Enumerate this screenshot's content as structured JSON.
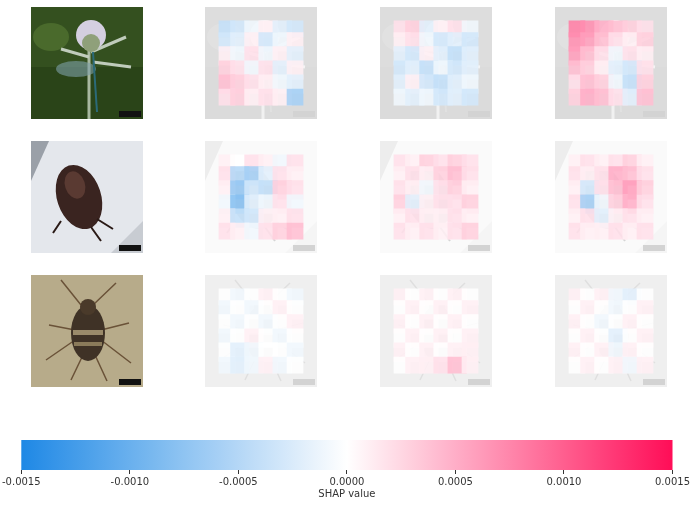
{
  "chart_data": {
    "type": "heatmap",
    "tick_labels": false,
    "cells": [
      [
        [
          [
            -0.0004,
            -0.0003,
            -0.0001,
            0.0001,
            -0.0002,
            -0.0003
          ],
          [
            -0.0003,
            -0.0002,
            0.0001,
            -0.0003,
            -0.0001,
            0.0001
          ],
          [
            0.0001,
            -0.0001,
            0.0002,
            -0.0001,
            0.0001,
            -0.0002
          ],
          [
            0.0003,
            0.0002,
            -0.0001,
            0.0002,
            -0.0002,
            0.0001
          ],
          [
            0.0004,
            0.0003,
            0.0002,
            0.0001,
            -0.0001,
            -0.0002
          ],
          [
            0.0002,
            0.0003,
            0.0001,
            0.0002,
            0.0001,
            -0.0006
          ]
        ],
        [
          [
            0.0002,
            0.0003,
            -0.0002,
            0.0001,
            0.0002,
            -0.0001
          ],
          [
            0.0001,
            0.0002,
            -0.0001,
            -0.0003,
            -0.0002,
            -0.0003
          ],
          [
            -0.0002,
            -0.0003,
            0.0001,
            -0.0002,
            -0.0004,
            -0.0002
          ],
          [
            -0.0003,
            -0.0002,
            -0.0004,
            -0.0001,
            -0.0003,
            -0.0002
          ],
          [
            -0.0002,
            0.0001,
            -0.0003,
            -0.0004,
            -0.0002,
            -0.0001
          ],
          [
            -0.0001,
            -0.0002,
            -0.0001,
            -0.0003,
            -0.0002,
            -0.0003
          ]
        ],
        [
          [
            0.0008,
            0.0007,
            0.0005,
            0.0004,
            0.0003,
            0.0002
          ],
          [
            0.0007,
            0.0006,
            0.0004,
            0.0002,
            0.0001,
            0.0003
          ],
          [
            0.0006,
            0.0004,
            0.0002,
            -0.0001,
            0.0002,
            0.0001
          ],
          [
            0.0004,
            0.0003,
            0.0001,
            -0.0002,
            -0.0003,
            0.0002
          ],
          [
            0.0002,
            0.0004,
            0.0003,
            -0.0001,
            -0.0004,
            0.0003
          ],
          [
            0.0003,
            0.0005,
            0.0004,
            0.0002,
            -0.0002,
            0.0004
          ]
        ]
      ],
      [
        [
          [
            0.0001,
            0,
            0.0002,
            0.0001,
            -0.0001,
            0.0002
          ],
          [
            0.0002,
            -0.0005,
            -0.0006,
            -0.0002,
            0.0002,
            0.0001
          ],
          [
            0.0001,
            -0.0007,
            -0.0003,
            -0.0004,
            0.0003,
            0.0002
          ],
          [
            -0.0001,
            -0.0008,
            -0.0002,
            -0.0001,
            0.0002,
            -0.0001
          ],
          [
            0.0001,
            -0.0004,
            -0.0003,
            0.0001,
            0.0001,
            0.0002
          ],
          [
            0.0002,
            0.0001,
            -0.0001,
            0.0002,
            0.0003,
            0.0004
          ]
        ],
        [
          [
            0.0002,
            0.0001,
            0.0003,
            0.0002,
            0.0003,
            0.0002
          ],
          [
            0.0001,
            0.0002,
            0.0001,
            0.0003,
            0.0004,
            0.0002
          ],
          [
            0.0002,
            0.0001,
            -0.0001,
            0.0002,
            0.0003,
            0.0001
          ],
          [
            0.0003,
            -0.0002,
            0.0001,
            0.0002,
            0.0002,
            0.0003
          ],
          [
            0.0001,
            0.0002,
            0.0001,
            0.0001,
            0.0002,
            0.0001
          ],
          [
            0.0002,
            0.0001,
            0.0002,
            0.0001,
            0.0002,
            0.0003
          ]
        ],
        [
          [
            0.0001,
            0.0002,
            0.0001,
            0.0002,
            0.0003,
            0.0001
          ],
          [
            0.0002,
            0.0001,
            0.0002,
            0.0005,
            0.0004,
            0.0002
          ],
          [
            0.0001,
            -0.0003,
            0.0002,
            0.0004,
            0.0006,
            0.0003
          ],
          [
            0.0002,
            -0.0006,
            -0.0001,
            0.0003,
            0.0005,
            0.0002
          ],
          [
            0.0001,
            0.0002,
            -0.0002,
            0.0001,
            0.0002,
            0.0001
          ],
          [
            0.0002,
            0.0001,
            0.0001,
            0.0002,
            0.0001,
            0.0002
          ]
        ]
      ],
      [
        [
          [
            0,
            -0.0001,
            0,
            0.0001,
            0,
            -0.0001
          ],
          [
            -0.0001,
            0,
            -0.0001,
            0,
            0.0001,
            0
          ],
          [
            0,
            -0.0001,
            0,
            -0.0001,
            0,
            0.0001
          ],
          [
            -0.0001,
            0,
            0.0001,
            0,
            -0.0001,
            0
          ],
          [
            0,
            -0.0002,
            -0.0001,
            0,
            0,
            -0.0001
          ],
          [
            -0.0001,
            -0.0002,
            -0.0001,
            0.0001,
            -0.0001,
            0
          ]
        ],
        [
          [
            0.0001,
            0,
            0.0001,
            0,
            0.0001,
            0
          ],
          [
            0,
            0.0001,
            0,
            0.0001,
            0,
            0.0001
          ],
          [
            0.0001,
            0,
            0.0001,
            0,
            0.0001,
            0
          ],
          [
            0,
            0.0001,
            0,
            0.0001,
            0,
            0.0001
          ],
          [
            0.0001,
            0,
            0.0001,
            0,
            0.0001,
            0.0001
          ],
          [
            0,
            0.0001,
            0.0001,
            0.0002,
            0.0004,
            0.0001
          ]
        ],
        [
          [
            0.0001,
            0,
            0.0001,
            -0.0001,
            -0.0002,
            0
          ],
          [
            0,
            0.0001,
            0,
            -0.0001,
            0,
            0.0001
          ],
          [
            0.0001,
            0,
            -0.0001,
            0,
            0.0001,
            0
          ],
          [
            0,
            0.0001,
            0,
            -0.0002,
            0,
            0.0001
          ],
          [
            0.0001,
            0,
            0.0001,
            -0.0001,
            0.0001,
            0
          ],
          [
            0,
            0.0001,
            0,
            0.0001,
            -0.0001,
            0.0001
          ]
        ]
      ]
    ],
    "colorbar_label": "SHAP value",
    "colorbar_range": [
      -0.0015,
      0.0015
    ],
    "colorbar_ticks": [
      -0.0015,
      {
        "value": -0.001,
        "label": "-0.0010"
      },
      -0.0005,
      {
        "value": 0,
        "label": "0.0000"
      },
      0.0005,
      {
        "value": 0.001,
        "label": "0.0010"
      },
      0.0015
    ]
  }
}
